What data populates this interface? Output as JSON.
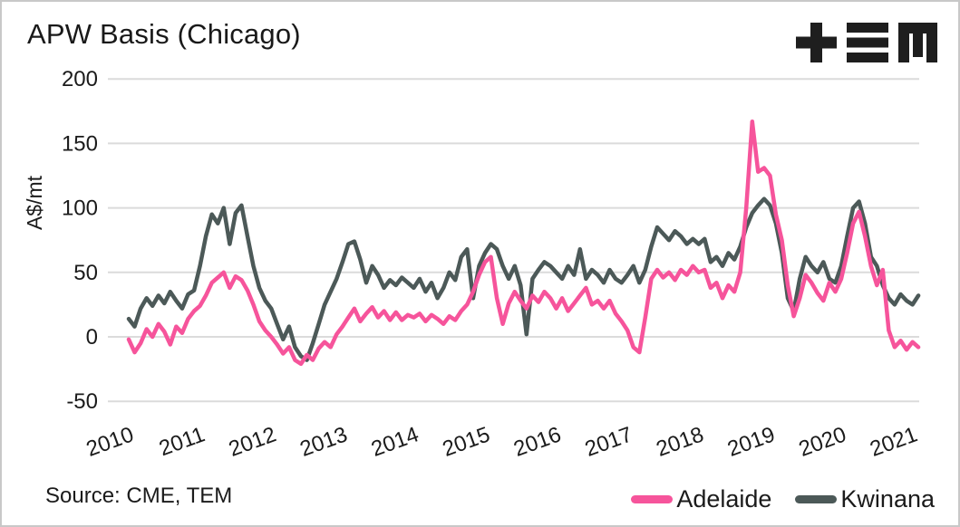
{
  "title": "APW Basis (Chicago)",
  "logo": {
    "brand": "TEM",
    "color": "#1e1e1e"
  },
  "footer": {
    "source": "Source: CME, TEM"
  },
  "legend": [
    {
      "label": "Adelaide",
      "color": "#f6549b"
    },
    {
      "label": "Kwinana",
      "color": "#4c5958"
    }
  ],
  "colors": {
    "background": "#ffffff",
    "border": "#c8c8c8",
    "grid": "#dbdbdb",
    "text": "#1b1b1b",
    "adelaide": "#f6549b",
    "kwinana": "#4c5958"
  },
  "chart_data": {
    "type": "line",
    "title": "APW Basis (Chicago)",
    "xlabel": "",
    "ylabel": "A$/mt",
    "ylim": [
      -50,
      200
    ],
    "yticks": [
      200,
      150,
      100,
      50,
      0,
      -50
    ],
    "xticks": [
      2010,
      2011,
      2012,
      2013,
      2014,
      2015,
      2016,
      2017,
      2018,
      2019,
      2020,
      2021
    ],
    "grid": "horizontal",
    "legend_position": "bottom-right",
    "x_start": 2010.0,
    "x_step_months": 1,
    "x_end": 2021.08,
    "series": [
      {
        "name": "Adelaide",
        "color": "#f6549b",
        "values": [
          -2,
          -12,
          -5,
          6,
          0,
          10,
          4,
          -6,
          8,
          3,
          14,
          20,
          24,
          32,
          42,
          46,
          50,
          38,
          47,
          44,
          36,
          25,
          12,
          5,
          0,
          -6,
          -13,
          -8,
          -18,
          -21,
          -14,
          -18,
          -9,
          -4,
          -8,
          2,
          8,
          15,
          22,
          12,
          18,
          23,
          15,
          20,
          13,
          19,
          13,
          17,
          15,
          18,
          12,
          17,
          14,
          10,
          16,
          13,
          20,
          25,
          35,
          48,
          58,
          62,
          30,
          10,
          26,
          35,
          28,
          22,
          32,
          27,
          35,
          30,
          22,
          30,
          20,
          26,
          32,
          38,
          25,
          28,
          22,
          28,
          18,
          12,
          5,
          -8,
          -12,
          15,
          45,
          52,
          46,
          50,
          44,
          52,
          48,
          55,
          50,
          52,
          38,
          42,
          30,
          40,
          35,
          50,
          100,
          167,
          128,
          131,
          125,
          95,
          75,
          40,
          16,
          30,
          48,
          42,
          34,
          28,
          42,
          35,
          45,
          65,
          88,
          97,
          78,
          55,
          40,
          52,
          5,
          -8,
          -3,
          -10,
          -4,
          -8
        ]
      },
      {
        "name": "Kwinana",
        "color": "#4c5958",
        "values": [
          14,
          8,
          22,
          30,
          24,
          32,
          26,
          35,
          28,
          22,
          33,
          36,
          55,
          78,
          95,
          88,
          100,
          72,
          96,
          102,
          78,
          55,
          38,
          28,
          22,
          10,
          -2,
          8,
          -8,
          -15,
          -18,
          -5,
          10,
          25,
          35,
          45,
          58,
          72,
          74,
          60,
          42,
          55,
          48,
          38,
          44,
          40,
          46,
          42,
          38,
          45,
          35,
          42,
          30,
          38,
          50,
          44,
          62,
          68,
          30,
          55,
          65,
          72,
          68,
          55,
          45,
          55,
          40,
          2,
          45,
          52,
          58,
          55,
          50,
          45,
          55,
          48,
          68,
          45,
          52,
          48,
          42,
          52,
          45,
          42,
          48,
          55,
          42,
          52,
          70,
          85,
          80,
          75,
          82,
          78,
          72,
          76,
          72,
          76,
          58,
          62,
          55,
          65,
          60,
          70,
          85,
          96,
          102,
          107,
          102,
          88,
          65,
          30,
          20,
          45,
          62,
          55,
          50,
          58,
          45,
          42,
          55,
          78,
          100,
          105,
          88,
          62,
          55,
          40,
          30,
          25,
          33,
          28,
          25,
          32
        ]
      }
    ]
  }
}
